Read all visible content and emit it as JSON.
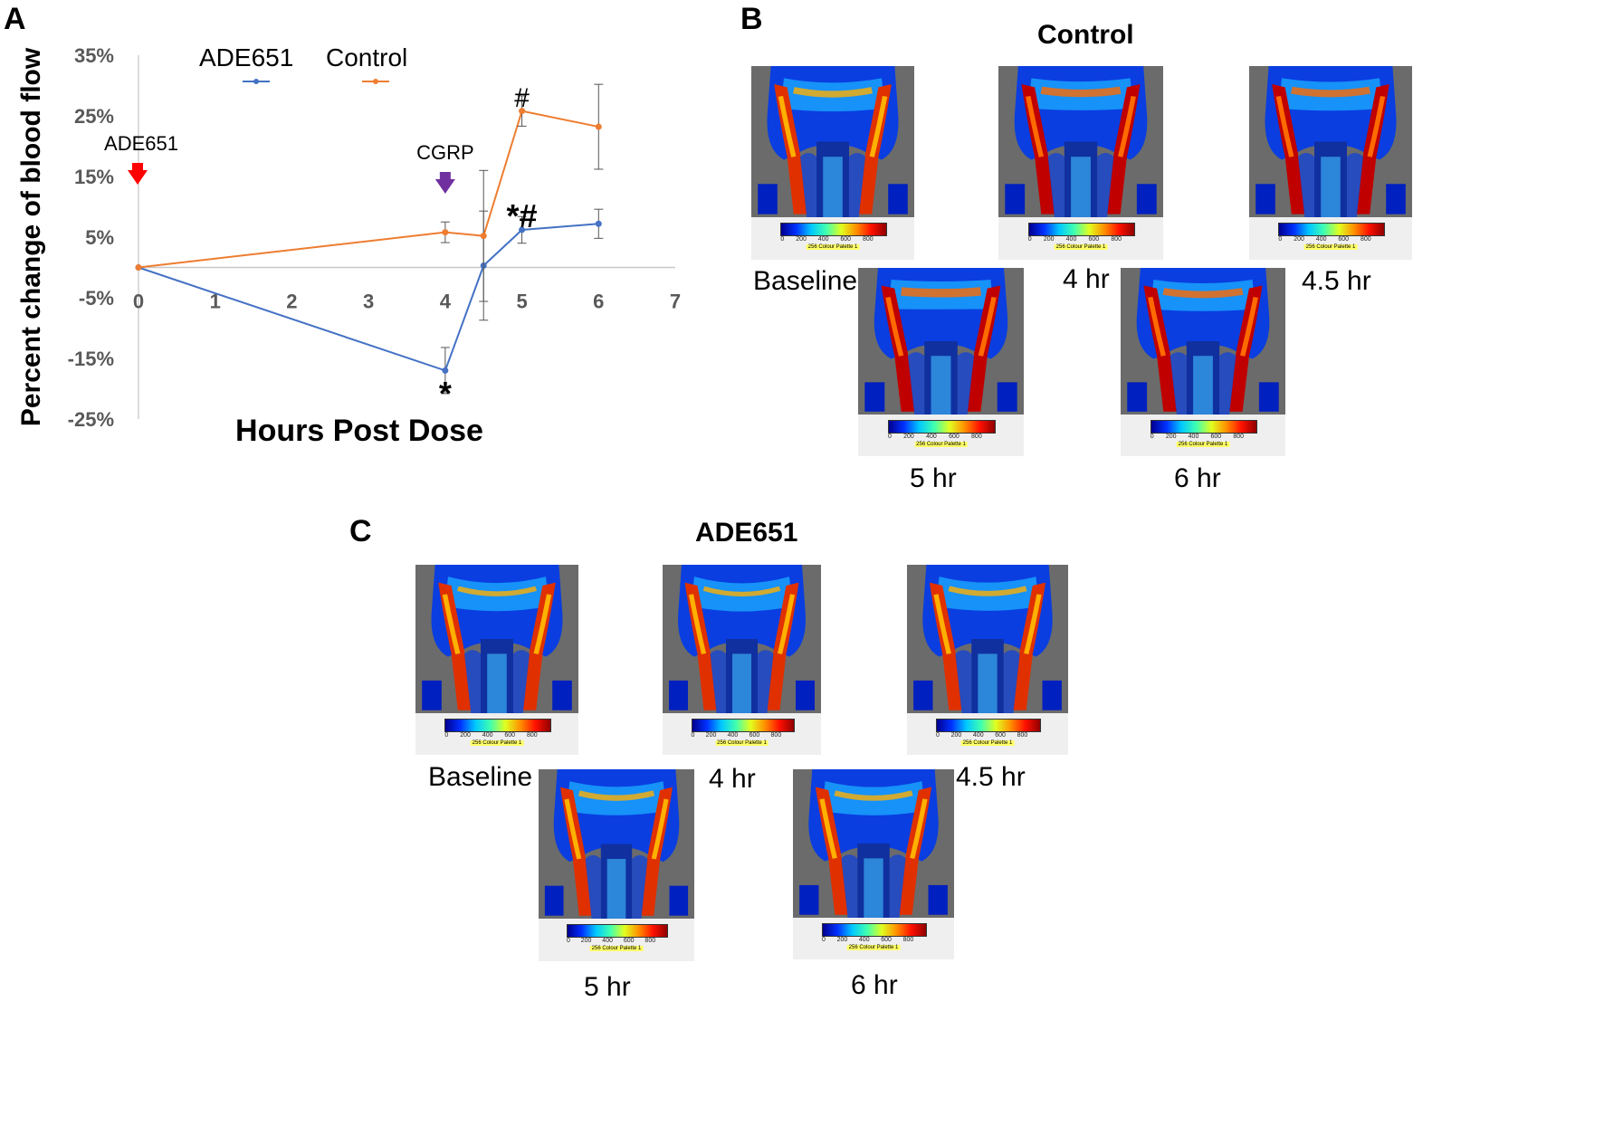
{
  "panels": {
    "a_label": "A",
    "b_label": "B",
    "c_label": "C"
  },
  "chart_data": {
    "type": "line",
    "title": "",
    "xlabel": "Hours Post Dose",
    "ylabel": "Percent change of blood flow",
    "xlim": [
      0,
      7
    ],
    "ylim": [
      -25,
      35
    ],
    "xticks": [
      0,
      1,
      2,
      3,
      4,
      5,
      6,
      7
    ],
    "yticks": [
      35,
      25,
      15,
      5,
      -5,
      -15,
      -25
    ],
    "ytick_labels": [
      "35%",
      "25%",
      "15%",
      "5%",
      "-5%",
      "-15%",
      "-25%"
    ],
    "series": [
      {
        "name": "ADE651",
        "color": "#4472c4",
        "x": [
          0,
          4,
          4.5,
          5,
          6
        ],
        "values": [
          0,
          -17,
          0.3,
          6.2,
          7.2
        ],
        "error": [
          0,
          3.8,
          9,
          2.2,
          2.4
        ]
      },
      {
        "name": "Control",
        "color": "#ed7d31",
        "x": [
          0,
          4,
          4.5,
          5,
          6
        ],
        "values": [
          0,
          5.8,
          5.2,
          25.8,
          23.2
        ],
        "error": [
          0,
          1.7,
          10.8,
          2.5,
          7
        ]
      }
    ],
    "annotations": [
      {
        "text": "ADE651",
        "x": 0,
        "kind": "arrow",
        "color": "#ff0000"
      },
      {
        "text": "CGRP",
        "x": 4,
        "kind": "arrow",
        "color": "#7030a0"
      },
      {
        "text": "*",
        "x": 4,
        "y": -20.8
      },
      {
        "text": "#",
        "x": 5,
        "y": 28.3
      },
      {
        "text": "*#",
        "x": 5,
        "y": 8.4
      }
    ],
    "legend": "top"
  },
  "control_panel": {
    "title": "Control",
    "captions": [
      "Baseline",
      "4 hr",
      "4.5 hr",
      "5 hr",
      "6 hr"
    ]
  },
  "ade_panel": {
    "title": "ADE651",
    "captions": [
      "Baseline",
      "4 hr",
      "4.5 hr",
      "5 hr",
      "6 hr"
    ]
  },
  "colorbar": {
    "ticks": [
      "0",
      "200",
      "400",
      "600",
      "800"
    ],
    "palette_label": "256 Colour Palette 1"
  }
}
